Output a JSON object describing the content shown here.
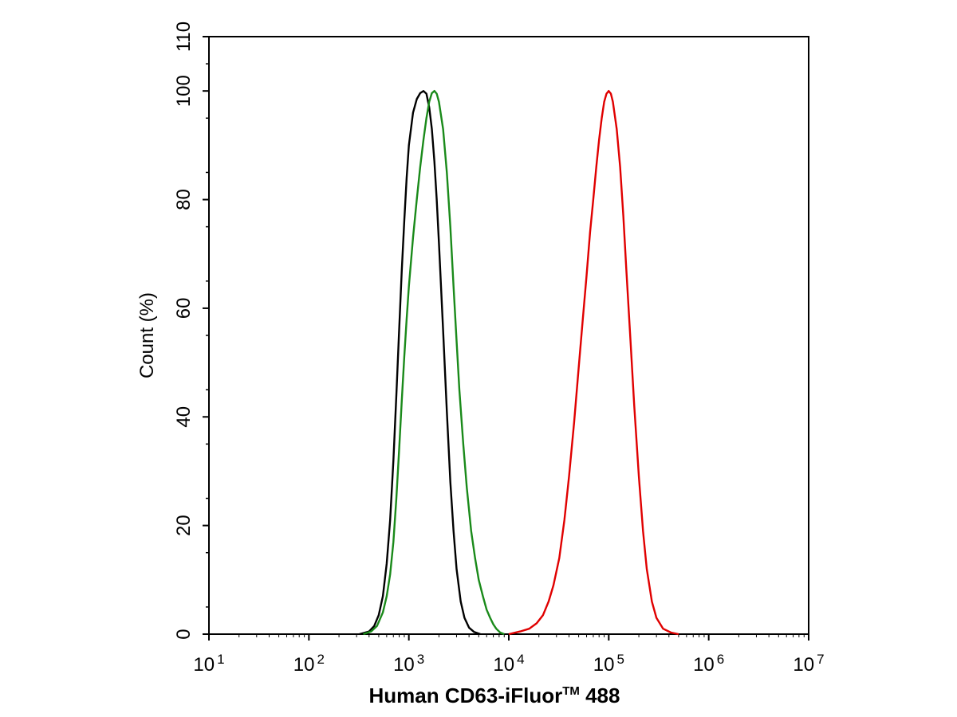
{
  "chart_data": {
    "type": "line",
    "xlabel": "Human CD63-iFluor",
    "xlabel_trademark": "TM",
    "xlabel_suffix": " 488",
    "ylabel": "Count  (%)",
    "xscale": "log",
    "xlim": [
      10,
      10000000
    ],
    "ylim": [
      0,
      110
    ],
    "x_ticks": [
      {
        "base": "10",
        "exp": "1",
        "value": 10
      },
      {
        "base": "10",
        "exp": "2",
        "value": 100
      },
      {
        "base": "10",
        "exp": "3",
        "value": 1000
      },
      {
        "base": "10",
        "exp": "4",
        "value": 10000
      },
      {
        "base": "10",
        "exp": "5",
        "value": 100000
      },
      {
        "base": "10",
        "exp": "6",
        "value": 1000000
      },
      {
        "base": "10",
        "exp": "7",
        "value": 10000000
      }
    ],
    "y_ticks": [
      "0",
      "20",
      "40",
      "60",
      "80",
      "100",
      "110"
    ],
    "y_tick_values": [
      0,
      20,
      40,
      60,
      80,
      100,
      110
    ],
    "grid": false,
    "legend": "none",
    "series": [
      {
        "color": "#000000",
        "points": [
          [
            320,
            0
          ],
          [
            400,
            0.5
          ],
          [
            450,
            1.5
          ],
          [
            500,
            3.5
          ],
          [
            550,
            7
          ],
          [
            600,
            13
          ],
          [
            650,
            21
          ],
          [
            700,
            32
          ],
          [
            750,
            44
          ],
          [
            800,
            56
          ],
          [
            850,
            67
          ],
          [
            900,
            76
          ],
          [
            950,
            84
          ],
          [
            1000,
            90
          ],
          [
            1100,
            96
          ],
          [
            1200,
            98.5
          ],
          [
            1300,
            99.6
          ],
          [
            1400,
            100
          ],
          [
            1500,
            99.5
          ],
          [
            1600,
            97
          ],
          [
            1700,
            93
          ],
          [
            1800,
            87
          ],
          [
            1900,
            80
          ],
          [
            2000,
            72
          ],
          [
            2200,
            56
          ],
          [
            2400,
            41
          ],
          [
            2600,
            28
          ],
          [
            2800,
            19
          ],
          [
            3000,
            12
          ],
          [
            3300,
            6
          ],
          [
            3600,
            3
          ],
          [
            4000,
            1.2
          ],
          [
            4500,
            0.4
          ],
          [
            5200,
            0
          ]
        ]
      },
      {
        "color": "#1a8a1a",
        "points": [
          [
            350,
            0
          ],
          [
            420,
            0.5
          ],
          [
            480,
            1.5
          ],
          [
            550,
            4
          ],
          [
            600,
            7
          ],
          [
            650,
            11
          ],
          [
            700,
            17
          ],
          [
            750,
            25
          ],
          [
            800,
            34
          ],
          [
            850,
            43
          ],
          [
            900,
            51
          ],
          [
            950,
            58
          ],
          [
            1000,
            64
          ],
          [
            1100,
            73
          ],
          [
            1200,
            80
          ],
          [
            1300,
            86
          ],
          [
            1400,
            91
          ],
          [
            1500,
            95
          ],
          [
            1600,
            98
          ],
          [
            1700,
            99.6
          ],
          [
            1800,
            100
          ],
          [
            1900,
            99.5
          ],
          [
            2000,
            98
          ],
          [
            2200,
            93
          ],
          [
            2400,
            85
          ],
          [
            2600,
            75
          ],
          [
            2800,
            64
          ],
          [
            3000,
            54
          ],
          [
            3200,
            45
          ],
          [
            3500,
            35
          ],
          [
            3800,
            27
          ],
          [
            4200,
            19
          ],
          [
            4600,
            14
          ],
          [
            5000,
            10
          ],
          [
            5500,
            7
          ],
          [
            6000,
            4.5
          ],
          [
            6500,
            3
          ],
          [
            7000,
            1.8
          ],
          [
            7500,
            1
          ],
          [
            8200,
            0.3
          ],
          [
            9000,
            0
          ]
        ]
      },
      {
        "color": "#e00000",
        "points": [
          [
            10000,
            0
          ],
          [
            13000,
            0.5
          ],
          [
            16000,
            1
          ],
          [
            19000,
            2
          ],
          [
            22000,
            3.5
          ],
          [
            25000,
            6
          ],
          [
            28000,
            9
          ],
          [
            32000,
            14
          ],
          [
            36000,
            21
          ],
          [
            40000,
            29
          ],
          [
            45000,
            39
          ],
          [
            50000,
            49
          ],
          [
            55000,
            58
          ],
          [
            60000,
            66
          ],
          [
            65000,
            74
          ],
          [
            70000,
            80
          ],
          [
            75000,
            86
          ],
          [
            80000,
            91
          ],
          [
            85000,
            95
          ],
          [
            90000,
            98
          ],
          [
            95000,
            99.5
          ],
          [
            100000,
            100
          ],
          [
            105000,
            99.5
          ],
          [
            110000,
            98
          ],
          [
            120000,
            93
          ],
          [
            130000,
            86
          ],
          [
            140000,
            77
          ],
          [
            150000,
            67
          ],
          [
            165000,
            54
          ],
          [
            180000,
            42
          ],
          [
            200000,
            29
          ],
          [
            220000,
            19
          ],
          [
            240000,
            12
          ],
          [
            270000,
            6
          ],
          [
            300000,
            3
          ],
          [
            350000,
            1
          ],
          [
            420000,
            0.3
          ],
          [
            500000,
            0
          ]
        ]
      }
    ]
  }
}
